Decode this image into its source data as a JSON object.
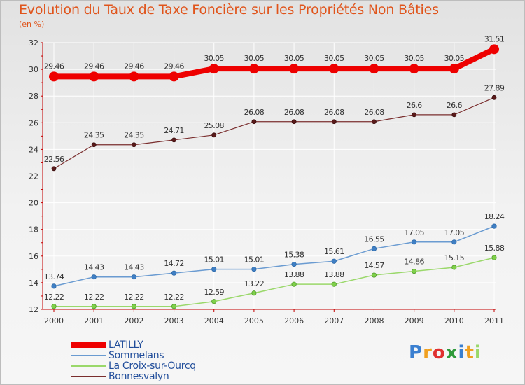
{
  "header": {
    "title": "Evolution du Taux de Taxe Foncière sur les Propriétés Non Bâties",
    "unit": "(en %)"
  },
  "logo": {
    "letters": [
      "P",
      "r",
      "o",
      "x",
      "i",
      "t",
      "i"
    ]
  },
  "colors": {
    "latilly": "#ee0000",
    "sommelans": "#6a9bd1",
    "croix": "#9ad86a",
    "bonnesvalyn": "#7a2e2e",
    "axis": "#c40000",
    "grid": "#ffffff"
  },
  "chart_data": {
    "type": "line",
    "title": "Evolution du Taux de Taxe Foncière sur les Propriétés Non Bâties",
    "ylabel": "(en %)",
    "xlabel": "",
    "ylim": [
      12,
      32
    ],
    "yticks": [
      12,
      14,
      16,
      18,
      20,
      22,
      24,
      26,
      28,
      30,
      32
    ],
    "categories": [
      "2000",
      "2001",
      "2002",
      "2003",
      "2004",
      "2005",
      "2006",
      "2007",
      "2008",
      "2009",
      "2010",
      "2011"
    ],
    "grid": true,
    "legend_position": "bottom-left",
    "series": [
      {
        "key": "latilly",
        "name": "LATILLY",
        "values": [
          29.46,
          29.46,
          29.46,
          29.46,
          30.05,
          30.05,
          30.05,
          30.05,
          30.05,
          30.05,
          30.05,
          31.51
        ],
        "labels": [
          "29.46",
          "29.46",
          "29.46",
          "29.46",
          "30.05",
          "30.05",
          "30.05",
          "30.05",
          "30.05",
          "30.05",
          "30.05",
          "31.51"
        ]
      },
      {
        "key": "sommelans",
        "name": "Sommelans",
        "values": [
          13.74,
          14.43,
          14.43,
          14.72,
          15.01,
          15.01,
          15.38,
          15.61,
          16.55,
          17.05,
          17.05,
          18.24
        ],
        "labels": [
          "13.74",
          "14.43",
          "14.43",
          "14.72",
          "15.01",
          "15.01",
          "15.38",
          "15.61",
          "16.55",
          "17.05",
          "17.05",
          "18.24"
        ]
      },
      {
        "key": "croix",
        "name": "La Croix-sur-Ourcq",
        "values": [
          12.22,
          12.22,
          12.22,
          12.22,
          12.59,
          13.22,
          13.88,
          13.88,
          14.57,
          14.86,
          15.15,
          15.88
        ],
        "labels": [
          "12.22",
          "12.22",
          "12.22",
          "12.22",
          "12.59",
          "13.22",
          "13.88",
          "13.88",
          "14.57",
          "14.86",
          "15.15",
          "15.88"
        ]
      },
      {
        "key": "bonnesvalyn",
        "name": "Bonnesvalyn",
        "values": [
          22.56,
          24.35,
          24.35,
          24.71,
          25.08,
          26.08,
          26.08,
          26.08,
          26.08,
          26.6,
          26.6,
          27.89
        ],
        "labels": [
          "22.56",
          "24.35",
          "24.35",
          "24.71",
          "25.08",
          "26.08",
          "26.08",
          "26.08",
          "26.08",
          "26.6",
          "26.6",
          "27.89"
        ]
      }
    ]
  }
}
